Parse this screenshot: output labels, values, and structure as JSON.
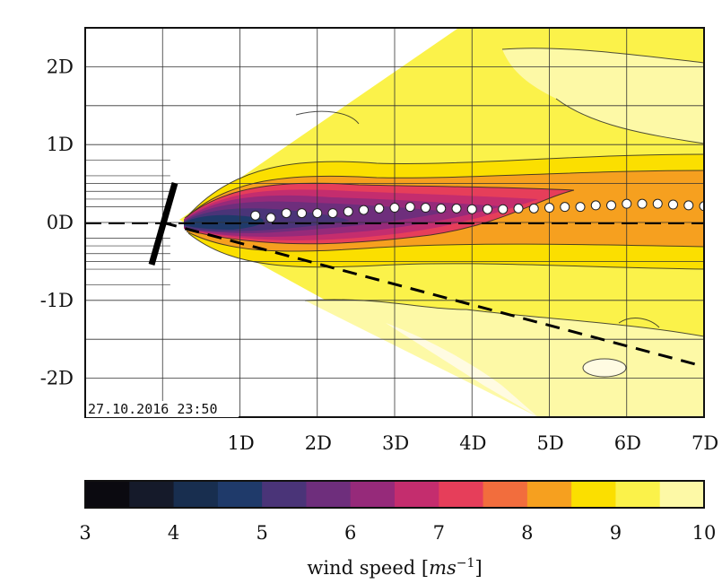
{
  "figure": {
    "timestamp": "27.10.2016 23:50",
    "colorbar_title": "wind speed [",
    "colorbar_unit_italic": "ms",
    "colorbar_unit_exp": "−1",
    "colorbar_title_end": "]"
  },
  "chart_data": {
    "type": "heatmap",
    "title": "",
    "x_ticks": [
      "1D",
      "2D",
      "3D",
      "4D",
      "5D",
      "6D",
      "7D"
    ],
    "x_tick_values": [
      1,
      2,
      3,
      4,
      5,
      6,
      7
    ],
    "y_ticks": [
      "2D",
      "1D",
      "0D",
      "-1D",
      "-2D"
    ],
    "y_tick_values": [
      2,
      1,
      0,
      -1,
      -2
    ],
    "xlim": [
      -1,
      7
    ],
    "ylim": [
      -2.5,
      2.5
    ],
    "grid": true,
    "turbine_position": [
      0,
      0
    ],
    "wake_centre_points": {
      "x": [
        1.2,
        1.4,
        1.6,
        1.8,
        2.0,
        2.2,
        2.4,
        2.6,
        2.8,
        3.0,
        3.2,
        3.4,
        3.6,
        3.8,
        4.0,
        4.2,
        4.4,
        4.6,
        4.8,
        5.0,
        5.2,
        5.4,
        5.6,
        5.8,
        6.0,
        6.2,
        6.4,
        6.6,
        6.8,
        7.0
      ],
      "y": [
        0.09,
        0.06,
        0.12,
        0.12,
        0.12,
        0.12,
        0.14,
        0.16,
        0.18,
        0.19,
        0.2,
        0.19,
        0.18,
        0.18,
        0.17,
        0.17,
        0.17,
        0.18,
        0.18,
        0.19,
        0.2,
        0.2,
        0.22,
        0.22,
        0.24,
        0.24,
        0.24,
        0.23,
        0.22,
        0.21
      ]
    },
    "deflection_line": {
      "x": [
        0,
        7
      ],
      "y": [
        0,
        -1.85
      ]
    },
    "colorbar": {
      "label": "wind speed [ms^-1]",
      "min": 3,
      "max": 10,
      "ticks": [
        3,
        4,
        5,
        6,
        7,
        8,
        9,
        10
      ],
      "bin_edges": [
        3.0,
        3.5,
        4.0,
        4.5,
        5.0,
        5.5,
        6.0,
        6.5,
        7.0,
        7.5,
        8.0,
        8.5,
        9.0,
        9.5,
        10.0
      ],
      "colors": [
        "#0b0a10",
        "#151a2a",
        "#182e4f",
        "#1f3a6a",
        "#4a3478",
        "#6e2e7c",
        "#962a7a",
        "#c42d6e",
        "#e63e5a",
        "#f26d3d",
        "#f6a01f",
        "#fbdf00",
        "#fbf24a",
        "#fdf9a6",
        "#fffbe2"
      ]
    }
  }
}
